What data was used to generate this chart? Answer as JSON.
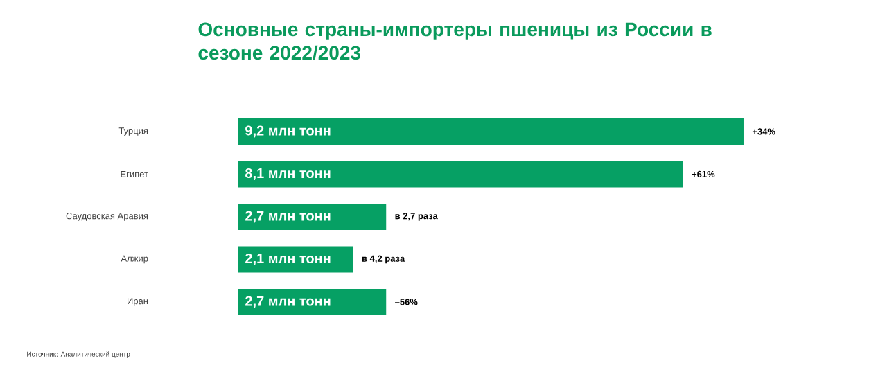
{
  "chart_data": {
    "type": "bar",
    "orientation": "horizontal",
    "title": "Основные страны-импортеры пшеницы из России в сезоне 2022/2023",
    "categories": [
      "Турция",
      "Египет",
      "Саудовская Аравия",
      "Алжир",
      "Иран"
    ],
    "values": [
      9.2,
      8.1,
      2.7,
      2.1,
      2.7
    ],
    "value_labels": [
      "9,2 млн тонн",
      "8,1 млн тонн",
      "2,7 млн тонн",
      "2,1 млн тонн",
      "2,7 млн тонн"
    ],
    "color": "#06a064",
    "annotations": [
      {
        "text": "+34%",
        "x": 9.2,
        "y": "Турция"
      },
      {
        "text": "+61%",
        "x": 8.1,
        "y": "Египет"
      },
      {
        "text": "в 2,7 раза",
        "x": 2.7,
        "y": "Саудовская Аравия"
      },
      {
        "text": "в 4,2 раза",
        "x": 2.1,
        "y": "Алжир"
      },
      {
        "text": "–56%",
        "x": 2.7,
        "y": "Иран"
      },
      "Источник: Аналитический центр"
    ]
  }
}
